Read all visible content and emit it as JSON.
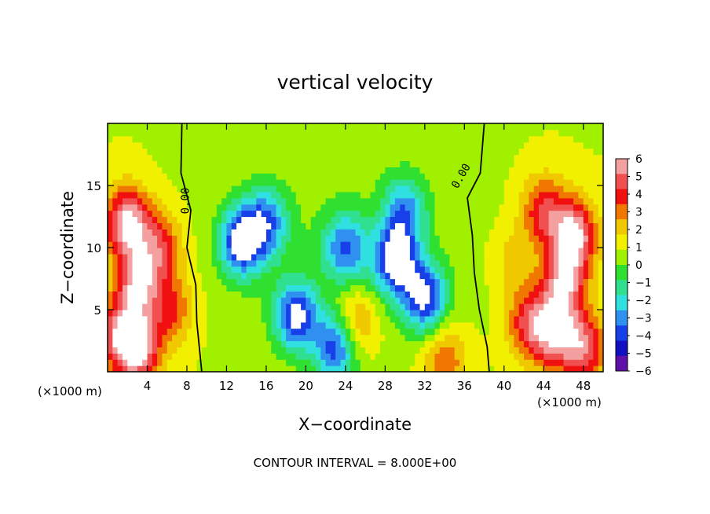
{
  "chart_data": {
    "type": "heatmap",
    "title": "vertical velocity",
    "xlabel": "X−coordinate",
    "ylabel": "Z−coordinate",
    "x_unit_left": "(×1000 m)",
    "x_unit_right": "(×1000 m)",
    "footer": "CONTOUR INTERVAL = 8.000E+00",
    "xlim": [
      0,
      50
    ],
    "ylim": [
      0,
      20
    ],
    "x_ticks": [
      4,
      8,
      12,
      16,
      20,
      24,
      28,
      32,
      36,
      40,
      44,
      48
    ],
    "y_ticks": [
      5,
      10,
      15
    ],
    "x_tick_labels": [
      "4",
      "8",
      "12",
      "16",
      "20",
      "24",
      "28",
      "32",
      "36",
      "40",
      "44",
      "48"
    ],
    "y_tick_labels": [
      "5",
      "10",
      "15"
    ],
    "colorbar_levels": [
      6,
      5,
      4,
      3,
      2,
      1,
      0,
      -1,
      -2,
      -3,
      -4,
      -5,
      -6
    ],
    "colorbar_labels": [
      "6",
      "5",
      "4",
      "3",
      "2",
      "1",
      "0",
      "−1",
      "−2",
      "−3",
      "−4",
      "−5",
      "−6"
    ],
    "colorbar_colors": [
      "#f4a0a0",
      "#f05050",
      "#f01010",
      "#f07800",
      "#f0c800",
      "#f0f000",
      "#a0f000",
      "#30e030",
      "#30e090",
      "#30e0e0",
      "#3090f0",
      "#1840e8",
      "#1010c0",
      "#6010a8"
    ],
    "contour_labels": [
      "0.00",
      "0.00"
    ],
    "features": [
      {
        "x": 2,
        "z": 12,
        "w": 6.5
      },
      {
        "x": 3,
        "z": 7,
        "w": 5.5
      },
      {
        "x": 5.2,
        "z": 10,
        "w": 4
      },
      {
        "x": 6.5,
        "z": 5,
        "w": 3
      },
      {
        "x": 1,
        "z": 3,
        "w": 4
      },
      {
        "x": 3,
        "z": 2,
        "w": 6.5
      },
      {
        "x": 13.5,
        "z": 10.5,
        "w": -6.5
      },
      {
        "x": 19,
        "z": 4.5,
        "w": -6
      },
      {
        "x": 23,
        "z": 2,
        "w": -5.5
      },
      {
        "x": 29,
        "z": 9,
        "w": -6.5
      },
      {
        "x": 32,
        "z": 6,
        "w": -6
      },
      {
        "x": 16,
        "z": 12,
        "w": -4.5
      },
      {
        "x": 24,
        "z": 10,
        "w": -4.5
      },
      {
        "x": 30,
        "z": 13,
        "w": -4
      },
      {
        "x": 25,
        "z": 4,
        "w": 3
      },
      {
        "x": 34,
        "z": 1,
        "w": 3
      },
      {
        "x": 47,
        "z": 11,
        "w": 6.5
      },
      {
        "x": 46,
        "z": 7,
        "w": 5.5
      },
      {
        "x": 44,
        "z": 13,
        "w": 4
      },
      {
        "x": 42.5,
        "z": 4,
        "w": 4
      },
      {
        "x": 45,
        "z": 3,
        "w": 5
      },
      {
        "x": 48,
        "z": 2,
        "w": 5
      },
      {
        "x": 41,
        "z": 9,
        "w": 1.5
      }
    ]
  }
}
